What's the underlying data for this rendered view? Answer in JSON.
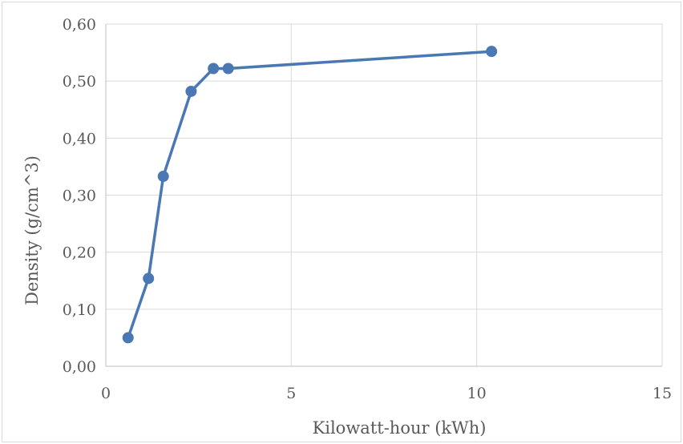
{
  "chart_data": {
    "type": "scatter",
    "title": "",
    "xlabel": "Kilowatt-hour (kWh)",
    "ylabel": "Density (g/cm^3)",
    "xlim": [
      0,
      15
    ],
    "ylim": [
      0.0,
      0.6
    ],
    "x_ticks": [
      0,
      5,
      10,
      15
    ],
    "x_tick_labels": [
      "0",
      "5",
      "10",
      "15"
    ],
    "y_ticks": [
      0.0,
      0.1,
      0.2,
      0.3,
      0.4,
      0.5,
      0.6
    ],
    "y_tick_labels": [
      "0,00",
      "0,10",
      "0,20",
      "0,30",
      "0,40",
      "0,50",
      "0,60"
    ],
    "grid": true,
    "legend": "none",
    "series": [
      {
        "color": "#4a78b5",
        "style": "line-with-markers",
        "points": [
          {
            "x": 0.6,
            "y": 0.05
          },
          {
            "x": 1.15,
            "y": 0.154
          },
          {
            "x": 1.55,
            "y": 0.333
          },
          {
            "x": 2.3,
            "y": 0.482
          },
          {
            "x": 2.9,
            "y": 0.522
          },
          {
            "x": 3.3,
            "y": 0.522
          },
          {
            "x": 10.4,
            "y": 0.552
          }
        ]
      }
    ]
  }
}
